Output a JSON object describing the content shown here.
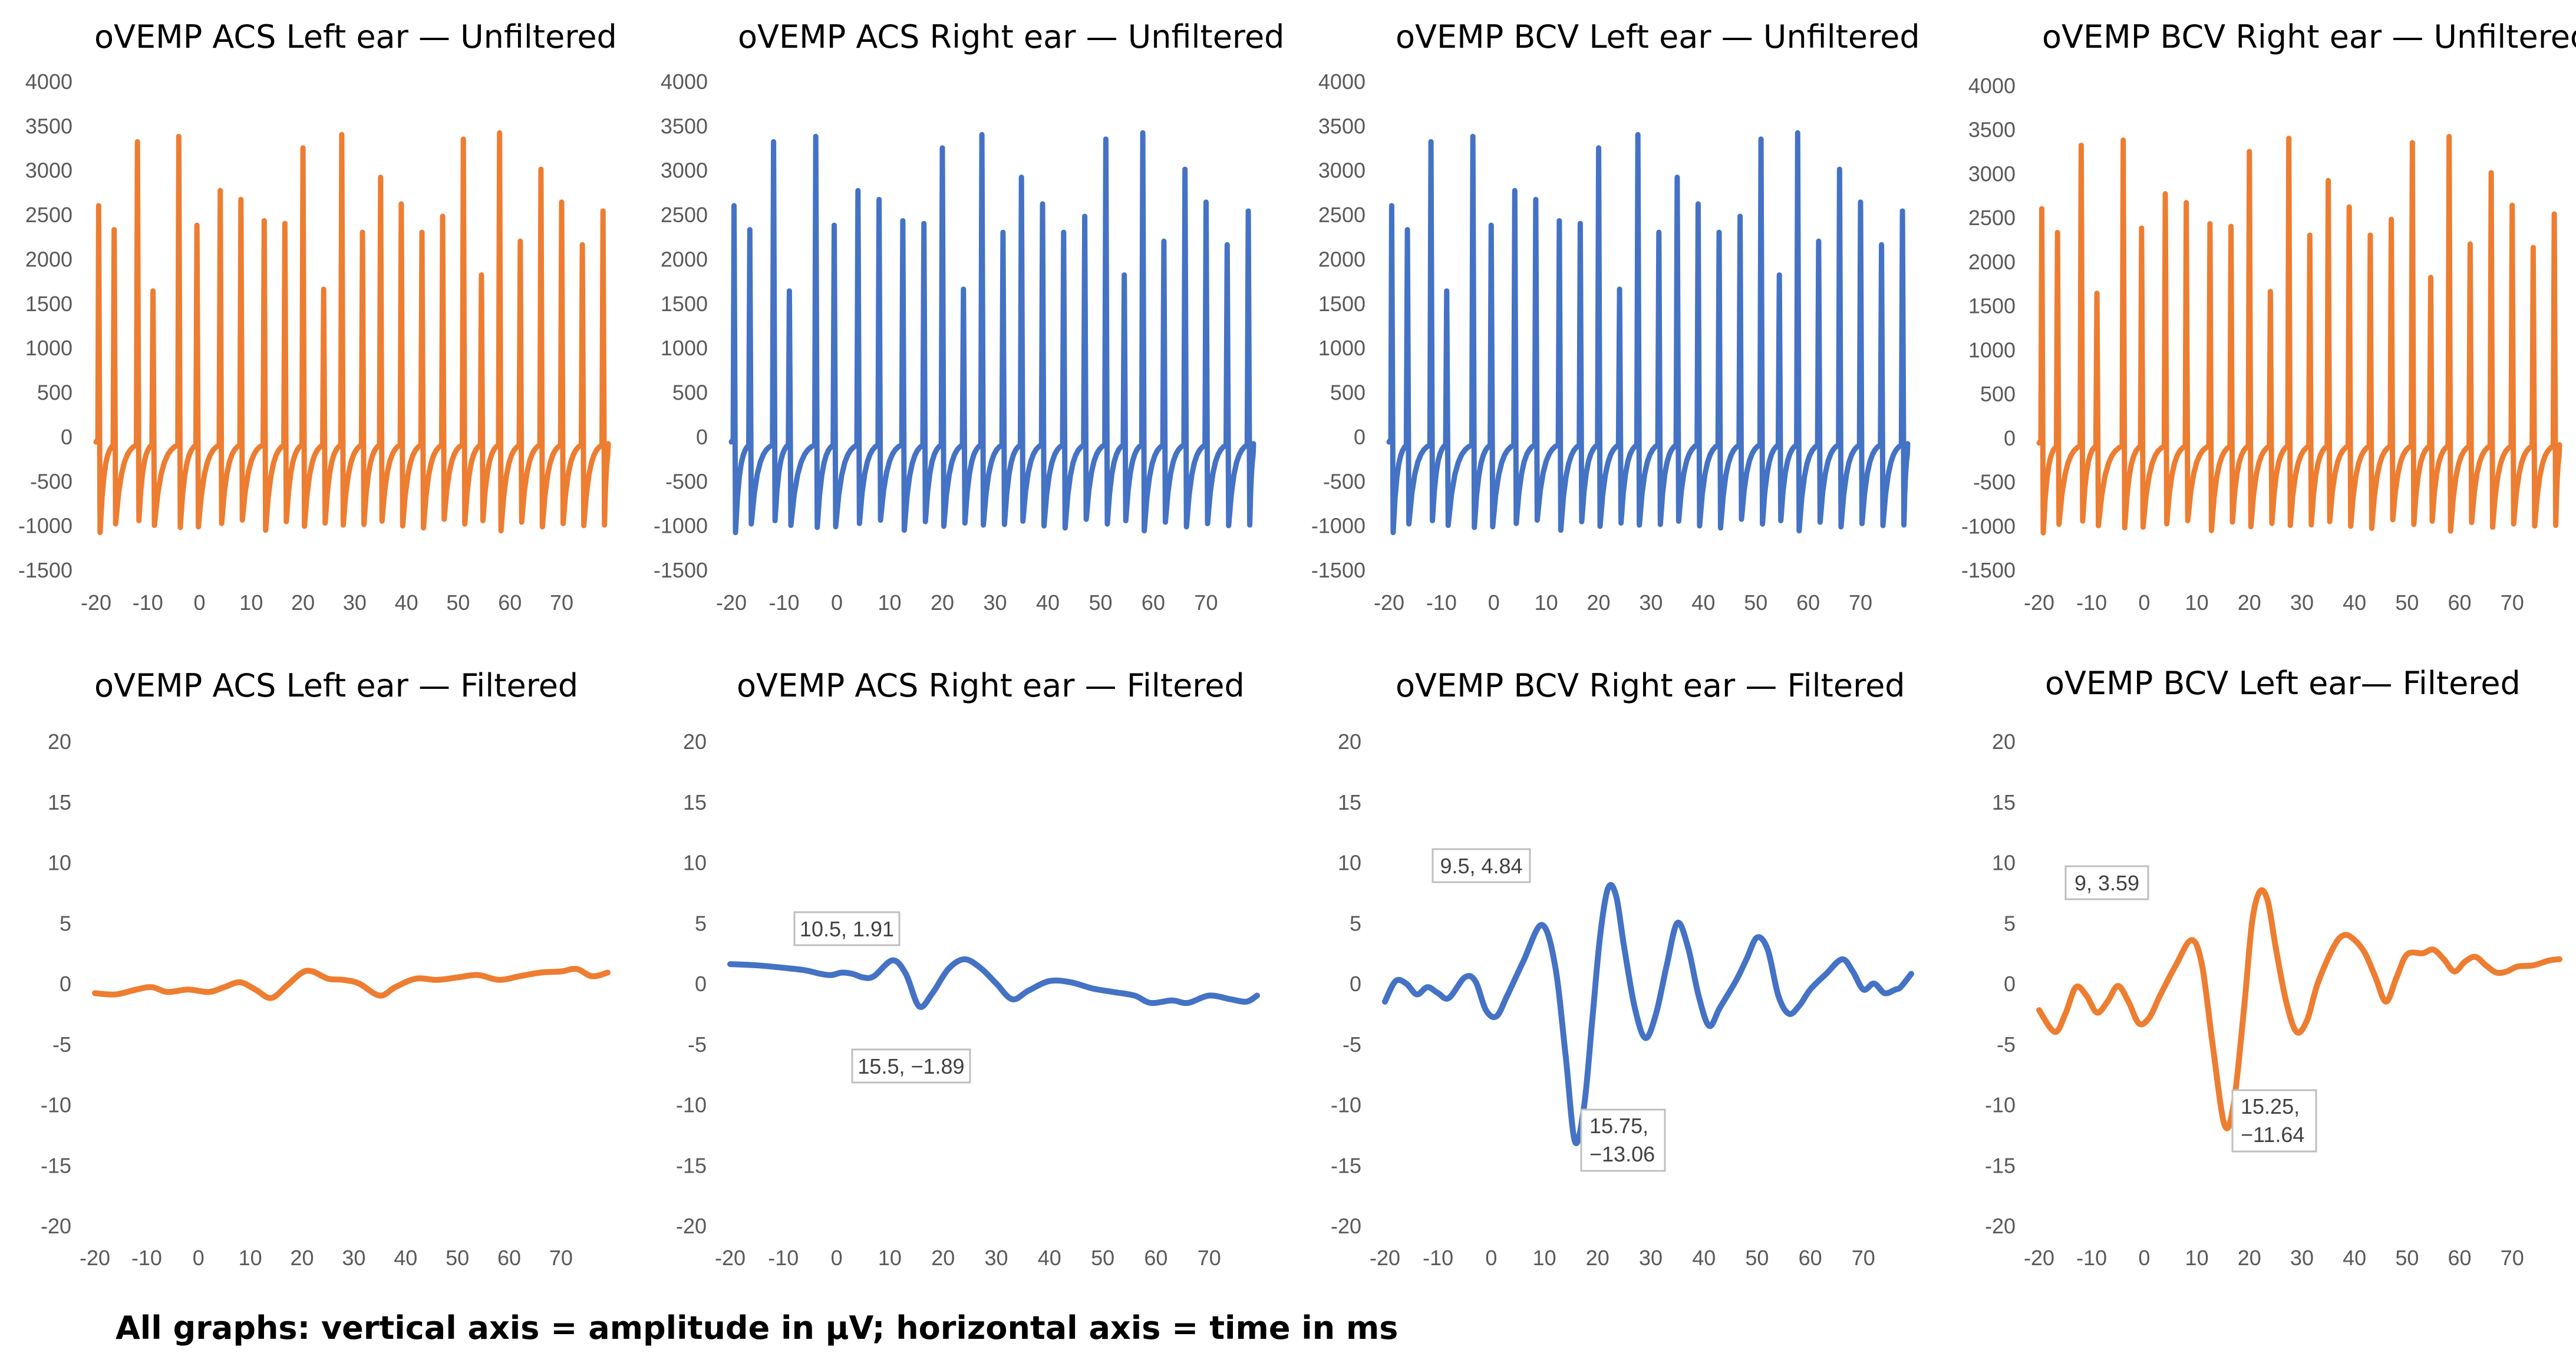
{
  "footnote": "All graphs: vertical axis = amplitude in µV; horizontal axis = time in ms",
  "colors": {
    "orange": "#ED7D31",
    "blue": "#4472C4",
    "tick": "#595959"
  },
  "chart_data": [
    {
      "type": "line",
      "title": "oVEMP ACS Left ear — Unfiltered",
      "color": "#ED7D31",
      "xlabel": "time in ms",
      "ylabel": "amplitude in µV",
      "xlim": [
        -20,
        79
      ],
      "ylim": [
        -1500,
        4000
      ],
      "xticks": [
        -20,
        -10,
        0,
        10,
        20,
        30,
        40,
        50,
        60,
        70
      ],
      "yticks": [
        4000,
        3500,
        3000,
        2500,
        2000,
        1500,
        1000,
        500,
        0,
        -500,
        -1000,
        -1500
      ],
      "pattern": "spike_train",
      "spikes": [
        [
          -19.5,
          2600
        ],
        [
          -16.5,
          2330
        ],
        [
          -12,
          3320
        ],
        [
          -9,
          1640
        ],
        [
          -4,
          3380
        ],
        [
          -0.5,
          2380
        ],
        [
          4,
          2770
        ],
        [
          8,
          2670
        ],
        [
          12.5,
          2430
        ],
        [
          16.5,
          2400
        ],
        [
          20,
          3250
        ],
        [
          24,
          1660
        ],
        [
          27.5,
          3400
        ],
        [
          31.5,
          2300
        ],
        [
          35,
          2920
        ],
        [
          39,
          2620
        ],
        [
          43,
          2300
        ],
        [
          47,
          2480
        ],
        [
          51,
          3350
        ],
        [
          54.5,
          1820
        ],
        [
          58,
          3420
        ],
        [
          62,
          2200
        ],
        [
          66,
          3010
        ],
        [
          70,
          2640
        ],
        [
          74,
          2160
        ],
        [
          78,
          2540
        ]
      ],
      "annotations": []
    },
    {
      "type": "line",
      "title": "oVEMP ACS Right ear — Unfiltered",
      "color": "#4472C4",
      "xlabel": "time in ms",
      "ylabel": "amplitude in µV",
      "xlim": [
        -20,
        79
      ],
      "ylim": [
        -1500,
        4000
      ],
      "xticks": [
        -20,
        -10,
        0,
        10,
        20,
        30,
        40,
        50,
        60,
        70
      ],
      "yticks": [
        4000,
        3500,
        3000,
        2500,
        2000,
        1500,
        1000,
        500,
        0,
        -500,
        -1000,
        -1500
      ],
      "pattern": "spike_train",
      "spikes": [
        [
          -19.5,
          2600
        ],
        [
          -16.5,
          2330
        ],
        [
          -12,
          3320
        ],
        [
          -9,
          1640
        ],
        [
          -4,
          3380
        ],
        [
          -0.5,
          2380
        ],
        [
          4,
          2770
        ],
        [
          8,
          2670
        ],
        [
          12.5,
          2430
        ],
        [
          16.5,
          2400
        ],
        [
          20,
          3250
        ],
        [
          24,
          1660
        ],
        [
          27.5,
          3400
        ],
        [
          31.5,
          2300
        ],
        [
          35,
          2920
        ],
        [
          39,
          2620
        ],
        [
          43,
          2300
        ],
        [
          47,
          2480
        ],
        [
          51,
          3350
        ],
        [
          54.5,
          1820
        ],
        [
          58,
          3420
        ],
        [
          62,
          2200
        ],
        [
          66,
          3010
        ],
        [
          70,
          2640
        ],
        [
          74,
          2160
        ],
        [
          78,
          2540
        ]
      ],
      "annotations": []
    },
    {
      "type": "line",
      "title": "oVEMP BCV Left ear — Unfiltered",
      "color": "#4472C4",
      "xlabel": "time in ms",
      "ylabel": "amplitude in µV",
      "xlim": [
        -20,
        79
      ],
      "ylim": [
        -1500,
        4000
      ],
      "xticks": [
        -20,
        -10,
        0,
        10,
        20,
        30,
        40,
        50,
        60,
        70
      ],
      "yticks": [
        4000,
        3500,
        3000,
        2500,
        2000,
        1500,
        1000,
        500,
        0,
        -500,
        -1000,
        -1500
      ],
      "pattern": "spike_train",
      "spikes": [
        [
          -19.5,
          2600
        ],
        [
          -16.5,
          2330
        ],
        [
          -12,
          3320
        ],
        [
          -9,
          1640
        ],
        [
          -4,
          3380
        ],
        [
          -0.5,
          2380
        ],
        [
          4,
          2770
        ],
        [
          8,
          2670
        ],
        [
          12.5,
          2430
        ],
        [
          16.5,
          2400
        ],
        [
          20,
          3250
        ],
        [
          24,
          1660
        ],
        [
          27.5,
          3400
        ],
        [
          31.5,
          2300
        ],
        [
          35,
          2920
        ],
        [
          39,
          2620
        ],
        [
          43,
          2300
        ],
        [
          47,
          2480
        ],
        [
          51,
          3350
        ],
        [
          54.5,
          1820
        ],
        [
          58,
          3420
        ],
        [
          62,
          2200
        ],
        [
          66,
          3010
        ],
        [
          70,
          2640
        ],
        [
          74,
          2160
        ],
        [
          78,
          2540
        ]
      ],
      "annotations": []
    },
    {
      "type": "line",
      "title": "oVEMP BCV Right ear — Unfiltered",
      "color": "#ED7D31",
      "xlabel": "time in ms",
      "ylabel": "amplitude in µV",
      "xlim": [
        -20,
        79
      ],
      "ylim": [
        -1500,
        4000
      ],
      "xticks": [
        -20,
        -10,
        0,
        10,
        20,
        30,
        40,
        50,
        60,
        70
      ],
      "yticks": [
        4000,
        3500,
        3000,
        2500,
        2000,
        1500,
        1000,
        500,
        0,
        -500,
        -1000,
        -1500
      ],
      "pattern": "spike_train",
      "spikes": [
        [
          -19.5,
          2600
        ],
        [
          -16.5,
          2330
        ],
        [
          -12,
          3320
        ],
        [
          -9,
          1640
        ],
        [
          -4,
          3380
        ],
        [
          -0.5,
          2380
        ],
        [
          4,
          2770
        ],
        [
          8,
          2670
        ],
        [
          12.5,
          2430
        ],
        [
          16.5,
          2400
        ],
        [
          20,
          3250
        ],
        [
          24,
          1660
        ],
        [
          27.5,
          3400
        ],
        [
          31.5,
          2300
        ],
        [
          35,
          2920
        ],
        [
          39,
          2620
        ],
        [
          43,
          2300
        ],
        [
          47,
          2480
        ],
        [
          51,
          3350
        ],
        [
          54.5,
          1820
        ],
        [
          58,
          3420
        ],
        [
          62,
          2200
        ],
        [
          66,
          3010
        ],
        [
          70,
          2640
        ],
        [
          74,
          2160
        ],
        [
          78,
          2540
        ]
      ],
      "annotations": []
    },
    {
      "type": "line",
      "title": "oVEMP ACS Left ear — Filtered",
      "color": "#ED7D31",
      "xlabel": "time in ms",
      "ylabel": "amplitude in µV",
      "xlim": [
        -20,
        79
      ],
      "ylim": [
        -20,
        20
      ],
      "xticks": [
        -20,
        -10,
        0,
        10,
        20,
        30,
        40,
        50,
        60,
        70
      ],
      "yticks": [
        20,
        15,
        10,
        5,
        0,
        -5,
        -10,
        -15,
        -20
      ],
      "pattern": "points",
      "points": [
        [
          -20,
          -0.8
        ],
        [
          -16,
          -0.9
        ],
        [
          -12,
          -0.5
        ],
        [
          -9,
          -0.3
        ],
        [
          -6,
          -0.7
        ],
        [
          -2,
          -0.5
        ],
        [
          2,
          -0.7
        ],
        [
          5,
          -0.3
        ],
        [
          8,
          0.1
        ],
        [
          11,
          -0.5
        ],
        [
          14,
          -1.2
        ],
        [
          17,
          -0.2
        ],
        [
          20,
          0.9
        ],
        [
          22,
          1.0
        ],
        [
          25,
          0.4
        ],
        [
          28,
          0.3
        ],
        [
          31,
          0.0
        ],
        [
          35,
          -1.0
        ],
        [
          38,
          -0.3
        ],
        [
          42,
          0.4
        ],
        [
          46,
          0.3
        ],
        [
          50,
          0.5
        ],
        [
          54,
          0.7
        ],
        [
          58,
          0.3
        ],
        [
          62,
          0.6
        ],
        [
          66,
          0.9
        ],
        [
          70,
          1.0
        ],
        [
          73,
          1.2
        ],
        [
          76,
          0.6
        ],
        [
          79,
          0.9
        ]
      ],
      "annotations": []
    },
    {
      "type": "line",
      "title": "oVEMP ACS Right ear — Filtered",
      "color": "#4472C4",
      "xlabel": "time in ms",
      "ylabel": "amplitude in µV",
      "xlim": [
        -20,
        79
      ],
      "ylim": [
        -20,
        20
      ],
      "xticks": [
        -20,
        -10,
        0,
        10,
        20,
        30,
        40,
        50,
        60,
        70
      ],
      "yticks": [
        20,
        15,
        10,
        5,
        0,
        -5,
        -10,
        -15,
        -20
      ],
      "pattern": "points",
      "points": [
        [
          -20,
          1.6
        ],
        [
          -15,
          1.5
        ],
        [
          -10,
          1.3
        ],
        [
          -6,
          1.1
        ],
        [
          -3,
          0.8
        ],
        [
          -1,
          0.7
        ],
        [
          1,
          0.9
        ],
        [
          3,
          0.8
        ],
        [
          5,
          0.5
        ],
        [
          7,
          0.6
        ],
        [
          10.5,
          1.91
        ],
        [
          13,
          0.8
        ],
        [
          15.5,
          -1.89
        ],
        [
          18,
          -0.8
        ],
        [
          21,
          1.2
        ],
        [
          24,
          2.0
        ],
        [
          27,
          1.3
        ],
        [
          30,
          0.0
        ],
        [
          33,
          -1.3
        ],
        [
          36,
          -0.6
        ],
        [
          40,
          0.2
        ],
        [
          44,
          0.1
        ],
        [
          48,
          -0.4
        ],
        [
          52,
          -0.7
        ],
        [
          56,
          -1.0
        ],
        [
          59,
          -1.6
        ],
        [
          63,
          -1.4
        ],
        [
          66,
          -1.6
        ],
        [
          70,
          -1.0
        ],
        [
          74,
          -1.3
        ],
        [
          77,
          -1.5
        ],
        [
          79,
          -1.0
        ]
      ],
      "annotations": [
        {
          "text": "10.5, 1.91",
          "x": 10.5,
          "y": 1.91
        },
        {
          "text": "15.5, −1.89",
          "x": 15.5,
          "y": -1.89
        }
      ]
    },
    {
      "type": "line",
      "title": "oVEMP BCV Right ear — Filtered",
      "color": "#4472C4",
      "xlabel": "time in ms",
      "ylabel": "amplitude in µV",
      "xlim": [
        -20,
        79
      ],
      "ylim": [
        -20,
        20
      ],
      "xticks": [
        -20,
        -10,
        0,
        10,
        20,
        30,
        40,
        50,
        60,
        70
      ],
      "yticks": [
        20,
        15,
        10,
        5,
        0,
        -5,
        -10,
        -15,
        -20
      ],
      "pattern": "points",
      "points": [
        [
          -20,
          -1.5
        ],
        [
          -18,
          0.2
        ],
        [
          -16,
          0.0
        ],
        [
          -14,
          -0.9
        ],
        [
          -12,
          -0.3
        ],
        [
          -10,
          -0.8
        ],
        [
          -8,
          -1.2
        ],
        [
          -5,
          0.5
        ],
        [
          -3,
          0.2
        ],
        [
          -1,
          -2.2
        ],
        [
          1,
          -2.7
        ],
        [
          3,
          -1.0
        ],
        [
          6,
          1.8
        ],
        [
          9.5,
          4.84
        ],
        [
          12,
          1.5
        ],
        [
          14,
          -6.0
        ],
        [
          15.75,
          -13.06
        ],
        [
          17.5,
          -10.0
        ],
        [
          19,
          -3.0
        ],
        [
          20.5,
          4.0
        ],
        [
          22,
          7.9
        ],
        [
          23.5,
          7.2
        ],
        [
          25,
          3.0
        ],
        [
          27,
          -2.0
        ],
        [
          29,
          -4.5
        ],
        [
          31,
          -2.5
        ],
        [
          33,
          1.5
        ],
        [
          35,
          5.0
        ],
        [
          37,
          3.0
        ],
        [
          39,
          -1.0
        ],
        [
          41,
          -3.5
        ],
        [
          43,
          -2.0
        ],
        [
          46,
          0.2
        ],
        [
          48,
          2.0
        ],
        [
          50,
          3.8
        ],
        [
          52,
          2.8
        ],
        [
          54,
          -1.0
        ],
        [
          56,
          -2.5
        ],
        [
          58,
          -1.8
        ],
        [
          60,
          -0.5
        ],
        [
          63,
          0.8
        ],
        [
          66,
          2.0
        ],
        [
          68,
          1.0
        ],
        [
          70,
          -0.5
        ],
        [
          72,
          0.0
        ],
        [
          74,
          -0.8
        ],
        [
          76,
          -0.5
        ],
        [
          77,
          -0.3
        ],
        [
          79,
          0.8
        ]
      ],
      "annotations": [
        {
          "text": "9.5, 4.84",
          "x": 9.5,
          "y": 4.84
        },
        {
          "text": "15.75,",
          "text2": "−13.06",
          "x": 15.75,
          "y": -13.06
        }
      ]
    },
    {
      "type": "line",
      "title": "oVEMP  BCV Left ear— Filtered",
      "color": "#ED7D31",
      "xlabel": "time in ms",
      "ylabel": "amplitude in µV",
      "xlim": [
        -20,
        79
      ],
      "ylim": [
        -20,
        20
      ],
      "xticks": [
        -20,
        -10,
        0,
        10,
        20,
        30,
        40,
        50,
        60,
        70
      ],
      "yticks": [
        20,
        15,
        10,
        5,
        0,
        -5,
        -10,
        -15,
        -20
      ],
      "pattern": "points",
      "points": [
        [
          -20,
          -2.2
        ],
        [
          -17,
          -4.0
        ],
        [
          -15,
          -2.5
        ],
        [
          -13,
          -0.3
        ],
        [
          -11,
          -1.0
        ],
        [
          -9,
          -2.4
        ],
        [
          -7,
          -1.5
        ],
        [
          -5,
          -0.2
        ],
        [
          -3,
          -1.5
        ],
        [
          -1,
          -3.3
        ],
        [
          1,
          -2.8
        ],
        [
          3,
          -1.0
        ],
        [
          6,
          1.5
        ],
        [
          9,
          3.59
        ],
        [
          11,
          1.5
        ],
        [
          13,
          -5.0
        ],
        [
          15.25,
          -11.64
        ],
        [
          17,
          -10.0
        ],
        [
          19,
          -2.0
        ],
        [
          20.5,
          5.0
        ],
        [
          22,
          7.6
        ],
        [
          23.5,
          6.8
        ],
        [
          25,
          3.0
        ],
        [
          27,
          -1.5
        ],
        [
          29,
          -4.0
        ],
        [
          31,
          -3.0
        ],
        [
          33,
          0.0
        ],
        [
          36,
          3.0
        ],
        [
          38,
          4.0
        ],
        [
          40,
          3.6
        ],
        [
          42,
          2.5
        ],
        [
          44,
          0.5
        ],
        [
          46,
          -1.5
        ],
        [
          48,
          0.5
        ],
        [
          50,
          2.4
        ],
        [
          53,
          2.5
        ],
        [
          55,
          2.8
        ],
        [
          57,
          2.0
        ],
        [
          59,
          1.0
        ],
        [
          61,
          1.8
        ],
        [
          63,
          2.2
        ],
        [
          65,
          1.5
        ],
        [
          67,
          0.9
        ],
        [
          69,
          1.0
        ],
        [
          71,
          1.4
        ],
        [
          74,
          1.5
        ],
        [
          77,
          1.9
        ],
        [
          79,
          2.0
        ]
      ],
      "annotations": [
        {
          "text": "9, 3.59",
          "x": 9,
          "y": 3.59
        },
        {
          "text": "15.25,",
          "text2": "−11.64",
          "x": 15.25,
          "y": -11.64
        }
      ]
    }
  ]
}
